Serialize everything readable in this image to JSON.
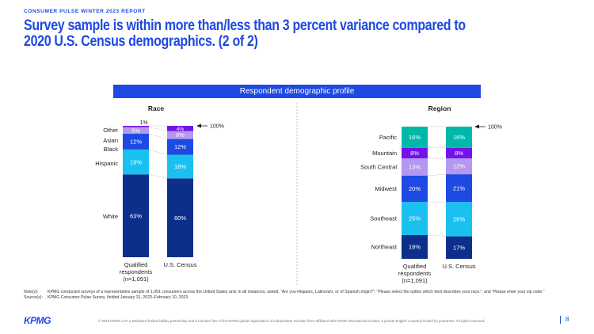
{
  "header": {
    "kicker": "CONSUMER PULSE WINTER 2023 REPORT",
    "title": "Survey sample is within more than/less than 3 percent variance compared to 2020 U.S. Census demographics. (2 of 2)"
  },
  "banner": "Respondent demographic profile",
  "chart_data": [
    {
      "type": "bar",
      "stacked": true,
      "title": "Race",
      "categories": [
        "Qualified respondents (n=1,091)",
        "U.S. Census"
      ],
      "series": [
        {
          "name": "White",
          "values": [
            63,
            60
          ],
          "labels": [
            "63%",
            "60%"
          ],
          "color": "#0C2F8C"
        },
        {
          "name": "Hispanic",
          "values": [
            19,
            18
          ],
          "labels": [
            "19%",
            "18%"
          ],
          "color": "#1AC1F0"
        },
        {
          "name": "Black",
          "values": [
            12,
            12
          ],
          "labels": [
            "12%",
            "12%"
          ],
          "color": "#1E49E2"
        },
        {
          "name": "Asian",
          "values": [
            5,
            6
          ],
          "labels": [
            "5%",
            "6%"
          ],
          "color": "#B497F0"
        },
        {
          "name": "Other",
          "values": [
            1,
            4
          ],
          "labels": [
            "1%",
            "4%"
          ],
          "color": "#7213EA"
        }
      ],
      "total_label": "100%",
      "ylim": [
        0,
        100
      ]
    },
    {
      "type": "bar",
      "stacked": true,
      "title": "Region",
      "categories": [
        "Qualified respondents (n=1,091)",
        "U.S. Census"
      ],
      "series": [
        {
          "name": "Northeast",
          "values": [
            18,
            17
          ],
          "labels": [
            "18%",
            "17%"
          ],
          "color": "#0C2F8C"
        },
        {
          "name": "Southeast",
          "values": [
            25,
            26
          ],
          "labels": [
            "25%",
            "26%"
          ],
          "color": "#1AC1F0"
        },
        {
          "name": "Midwest",
          "values": [
            20,
            21
          ],
          "labels": [
            "20%",
            "21%"
          ],
          "color": "#1E49E2"
        },
        {
          "name": "South Central",
          "values": [
            13,
            12
          ],
          "labels": [
            "13%",
            "12%"
          ],
          "color": "#B497F0"
        },
        {
          "name": "Mountain",
          "values": [
            8,
            8
          ],
          "labels": [
            "8%",
            "8%"
          ],
          "color": "#7213EA"
        },
        {
          "name": "Pacific",
          "values": [
            16,
            16
          ],
          "labels": [
            "16%",
            "16%"
          ],
          "color": "#00B8A9"
        }
      ],
      "total_label": "100%",
      "ylim": [
        0,
        100
      ]
    }
  ],
  "notes": [
    {
      "key": "Note(s):",
      "text": "KPMG conducted surveys of a representative sample of 1,091 consumers across the United States and, in all instances, asked, “Are you Hispanic, Latino/a/x, or of Spanish origin?”; “Please select the option which best describes your race.”; and “Please enter your zip code.”"
    },
    {
      "key": "Source(s):",
      "text": "KPMG Consumer Pulse Survey, fielded January 31, 2023–February 10, 2023"
    }
  ],
  "footer": {
    "logo": "KPMG",
    "copyright": "© 2023 KPMG LLP, a Delaware limited liability partnership and a member firm of the KPMG global organization of independent member firms affiliated with KPMG International Limited, a private English company limited by guarantee. All rights reserved.",
    "page": "8"
  }
}
